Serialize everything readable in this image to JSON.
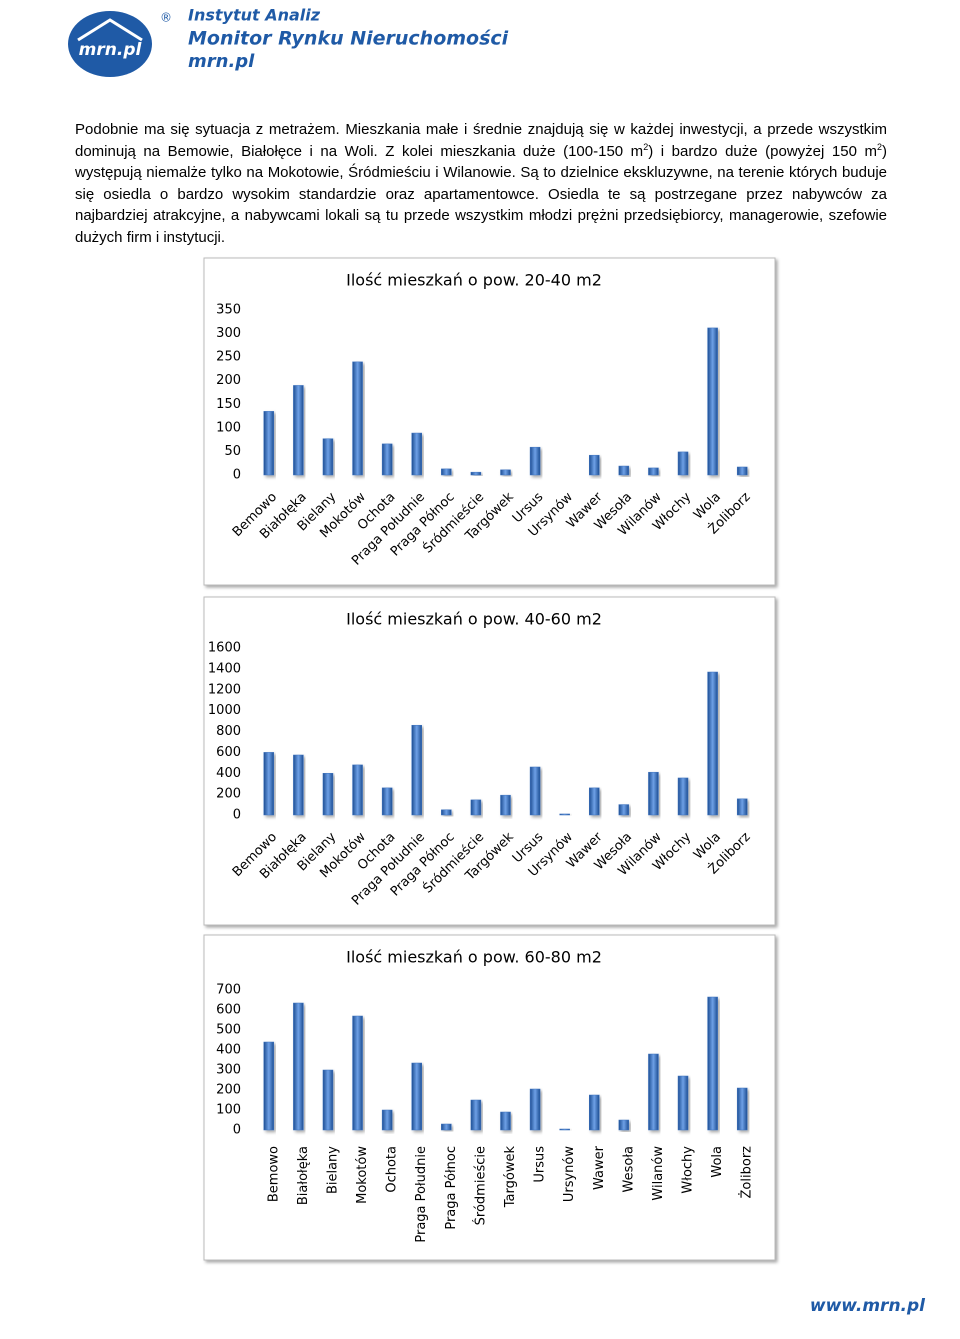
{
  "header": {
    "logo": "mrn.pl",
    "mark": "®",
    "line1": "Instytut Analiz",
    "line2": "Monitor Rynku Nieruchomości",
    "line3": "mrn.pl"
  },
  "paragraph": [
    "Podobnie ma się sytuacja z metrażem. Mieszkania małe i średnie znajdują się w każdej inwestycji, a przede wszystkim dominują na Bemowie, Białołęce i na Woli. Z kolei mieszkania duże (100-150 m",
    "2",
    ") i bardzo duże (powyżej 150 m",
    "2",
    ") występują niemalże tylko na Mokotowie, Śródmieściu i Wilanowie. Są to dzielnice ekskluzywne, na terenie których buduje się osiedla o bardzo wysokim standardzie oraz apartamentowce. Osiedla te są postrzegane przez nabywców za najbardziej atrakcyjne, a nabywcami lokali są tu przede wszystkim młodzi prężni przedsiębiorcy, managerowie, szefowie dużych firm i instytucji."
  ],
  "chart_data": [
    {
      "type": "bar",
      "title": "Ilość mieszkań o pow. 20-40 m2",
      "color": "#3f74c0",
      "categories": [
        "Bemowo",
        "Białołęka",
        "Bielany",
        "Mokotów",
        "Ochota",
        "Praga Południe",
        "Praga Północ",
        "Śródmieście",
        "Targówek",
        "Ursus",
        "Ursynów",
        "Wawer",
        "Wesoła",
        "Wilanów",
        "Włochy",
        "Wola",
        "Żoliborz"
      ],
      "values": [
        135,
        190,
        77,
        240,
        66,
        89,
        13,
        6,
        11,
        59,
        0,
        42,
        19,
        15,
        49,
        312,
        17
      ],
      "ylim": [
        0,
        350
      ],
      "yticks": [
        0,
        50,
        100,
        150,
        200,
        250,
        300,
        350
      ]
    },
    {
      "type": "bar",
      "title": "Ilość mieszkań o pow. 40-60 m2",
      "color": "#3f74c0",
      "categories": [
        "Bemowo",
        "Białołęka",
        "Bielany",
        "Mokotów",
        "Ochota",
        "Praga Południe",
        "Praga Północ",
        "Śródmieście",
        "Targówek",
        "Ursus",
        "Ursynów",
        "Wawer",
        "Wesoła",
        "Wilanów",
        "Włochy",
        "Wola",
        "Żoliborz"
      ],
      "values": [
        600,
        575,
        400,
        480,
        260,
        860,
        50,
        145,
        190,
        460,
        10,
        260,
        100,
        410,
        355,
        1370,
        155
      ],
      "ylim": [
        0,
        1600
      ],
      "yticks": [
        0,
        200,
        400,
        600,
        800,
        1000,
        1200,
        1400,
        1600
      ]
    },
    {
      "type": "bar",
      "title": "Ilość mieszkań o pow. 60-80 m2",
      "color": "#3f74c0",
      "categories": [
        "Bemowo",
        "Białołęka",
        "Bielany",
        "Mokotów",
        "Ochota",
        "Praga Południe",
        "Praga Północ",
        "Śródmieście",
        "Targówek",
        "Ursus",
        "Ursynów",
        "Wawer",
        "Wesoła",
        "Wilanów",
        "Włochy",
        "Wola",
        "Żoliborz"
      ],
      "values": [
        440,
        635,
        300,
        570,
        100,
        335,
        30,
        150,
        90,
        205,
        5,
        175,
        50,
        380,
        270,
        665,
        210
      ],
      "ylim": [
        0,
        700
      ],
      "yticks": [
        0,
        100,
        200,
        300,
        400,
        500,
        600,
        700
      ]
    }
  ],
  "footer": "www.mrn.pl"
}
